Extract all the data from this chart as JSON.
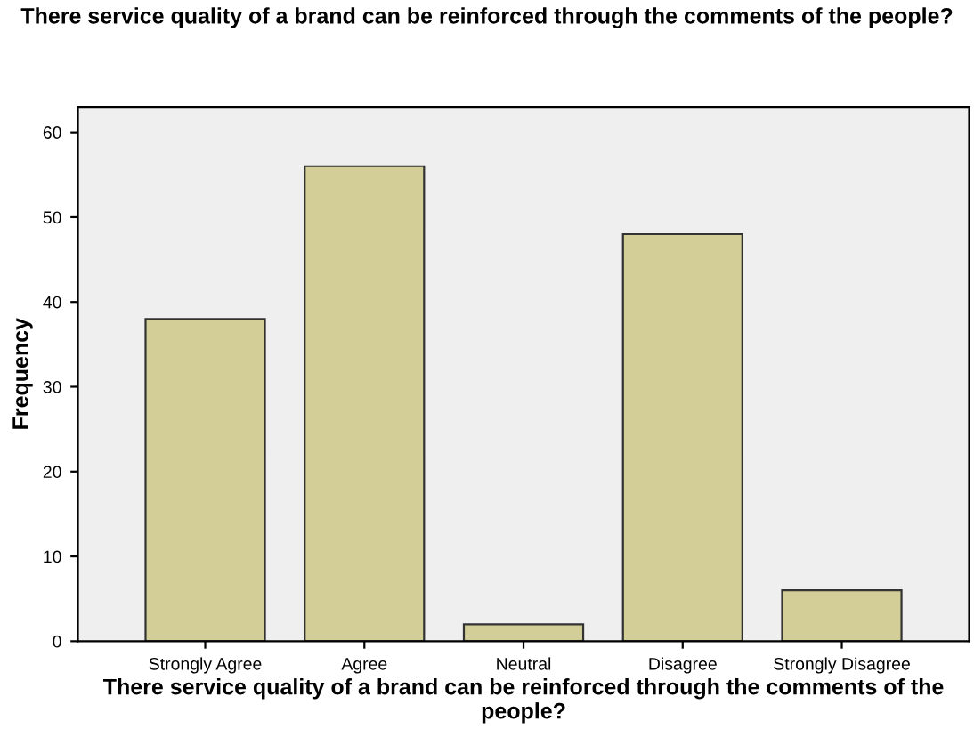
{
  "chart_data": {
    "type": "bar",
    "title": "There service quality of a brand can be reinforced through the comments of the people?",
    "xlabel": "There service quality of a brand can be reinforced through the comments of the people?",
    "ylabel": "Frequency",
    "categories": [
      "Strongly Agree",
      "Agree",
      "Neutral",
      "Disagree",
      "Strongly Disagree"
    ],
    "values": [
      38,
      56,
      2,
      48,
      6
    ],
    "color": "#d3ce97",
    "ylim": [
      0,
      63
    ],
    "yticks": [
      0,
      10,
      20,
      30,
      40,
      50,
      60
    ],
    "grid": false
  }
}
